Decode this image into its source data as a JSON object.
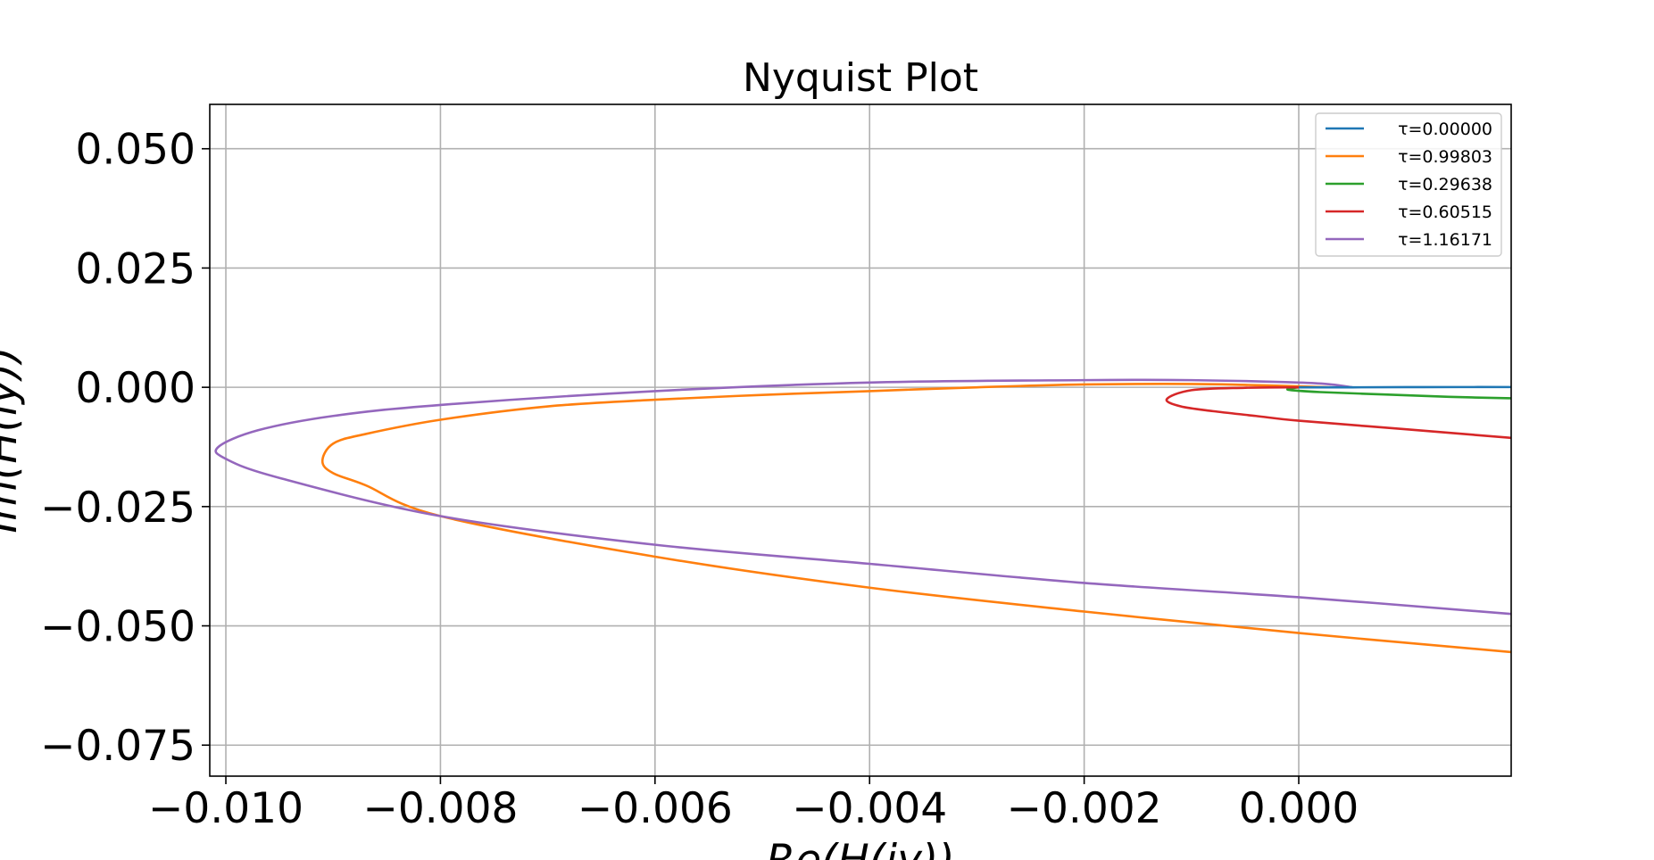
{
  "chart_data": {
    "type": "line",
    "title": "Nyquist Plot",
    "xlabel": "Re(H(iy))",
    "ylabel": "Im(H(iy))",
    "xlim": [
      -0.01015,
      0.00198
    ],
    "ylim": [
      -0.0815,
      0.0593
    ],
    "xticks": [
      -0.01,
      -0.008,
      -0.006,
      -0.004,
      -0.002,
      0.0
    ],
    "xtick_labels": [
      "−0.010",
      "−0.008",
      "−0.006",
      "−0.004",
      "−0.002",
      "0.000"
    ],
    "yticks": [
      0.05,
      0.025,
      0.0,
      -0.025,
      -0.05,
      -0.075
    ],
    "ytick_labels": [
      "0.050",
      "0.025",
      "0.000",
      "−0.025",
      "−0.050",
      "−0.075"
    ],
    "grid": true,
    "legend_position": "top-right",
    "series": [
      {
        "name": "τ=0.00000",
        "color": "#1f77b4",
        "points": [
          [
            0.0,
            0.0
          ],
          [
            0.0005,
            0.0
          ],
          [
            0.001,
            3e-05
          ],
          [
            0.0015,
            5e-05
          ],
          [
            0.00198,
            5e-05
          ]
        ]
      },
      {
        "name": "τ=0.99803",
        "color": "#ff7f0e",
        "points": [
          [
            0.0003,
            0.0
          ],
          [
            0.0,
            0.0002
          ],
          [
            -0.0005,
            0.0005
          ],
          [
            -0.001,
            0.0007
          ],
          [
            -0.002,
            0.0006
          ],
          [
            -0.003,
            0.0
          ],
          [
            -0.004,
            -0.0008
          ],
          [
            -0.005,
            -0.0016
          ],
          [
            -0.006,
            -0.0026
          ],
          [
            -0.007,
            -0.004
          ],
          [
            -0.008,
            -0.0068
          ],
          [
            -0.0087,
            -0.0098
          ],
          [
            -0.009,
            -0.0118
          ],
          [
            -0.0091,
            -0.0155
          ],
          [
            -0.009,
            -0.018
          ],
          [
            -0.0087,
            -0.0205
          ],
          [
            -0.008,
            -0.027
          ],
          [
            -0.006,
            -0.0355
          ],
          [
            -0.004,
            -0.042
          ],
          [
            -0.002,
            -0.047
          ],
          [
            0.0,
            -0.0515
          ],
          [
            0.00198,
            -0.0555
          ]
        ]
      },
      {
        "name": "τ=0.29638",
        "color": "#2ca02c",
        "points": [
          [
            0.0,
            0.0
          ],
          [
            -0.0001,
            -0.0005
          ],
          [
            0.0002,
            -0.001
          ],
          [
            0.0008,
            -0.0015
          ],
          [
            0.0014,
            -0.002
          ],
          [
            0.00198,
            -0.0023
          ]
        ]
      },
      {
        "name": "τ=0.60515",
        "color": "#d62728",
        "points": [
          [
            0.0,
            0.0
          ],
          [
            -0.0005,
            -0.0001
          ],
          [
            -0.001,
            -0.0006
          ],
          [
            -0.00123,
            -0.0025
          ],
          [
            -0.0011,
            -0.004
          ],
          [
            -0.0008,
            -0.005
          ],
          [
            -0.0004,
            -0.006
          ],
          [
            0.0,
            -0.007
          ],
          [
            0.001,
            -0.0088
          ],
          [
            0.00198,
            -0.0106
          ]
        ]
      },
      {
        "name": "τ=1.16171",
        "color": "#9467bd",
        "points": [
          [
            0.0005,
            0.0
          ],
          [
            0.0003,
            0.0006
          ],
          [
            0.0,
            0.001
          ],
          [
            -0.001,
            0.0015
          ],
          [
            -0.002,
            0.0015
          ],
          [
            -0.004,
            0.001
          ],
          [
            -0.006,
            -0.0008
          ],
          [
            -0.008,
            -0.0037
          ],
          [
            -0.009,
            -0.006
          ],
          [
            -0.0097,
            -0.009
          ],
          [
            -0.01007,
            -0.0125
          ],
          [
            -0.01,
            -0.015
          ],
          [
            -0.0095,
            -0.019
          ],
          [
            -0.008,
            -0.027
          ],
          [
            -0.006,
            -0.033
          ],
          [
            -0.004,
            -0.037
          ],
          [
            -0.002,
            -0.041
          ],
          [
            0.0,
            -0.044
          ],
          [
            0.00198,
            -0.0475
          ]
        ]
      }
    ]
  }
}
